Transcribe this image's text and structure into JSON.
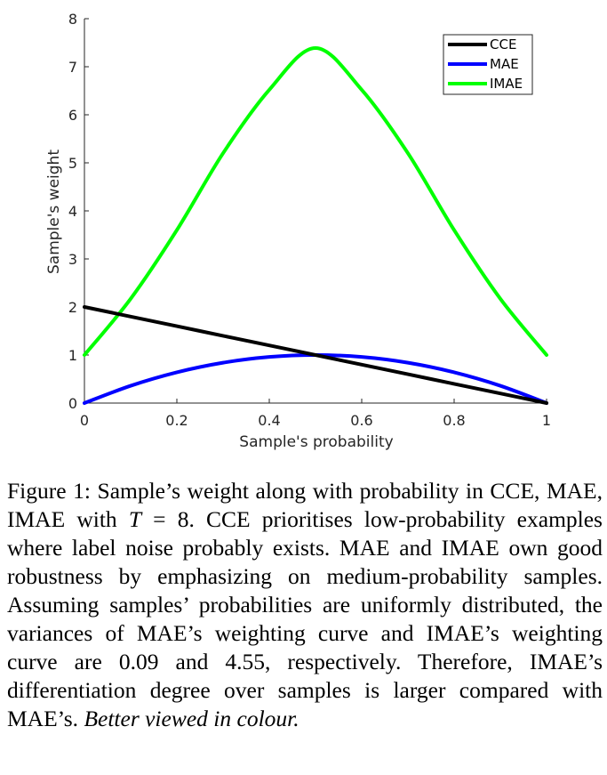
{
  "chart_data": {
    "type": "line",
    "xlabel": "Sample's probability",
    "ylabel": "Sample's weight",
    "xlim": [
      0,
      1
    ],
    "ylim": [
      0,
      8
    ],
    "xticks": [
      0,
      0.2,
      0.4,
      0.6,
      0.8,
      1
    ],
    "xtick_labels": [
      "0",
      "0.2",
      "0.4",
      "0.6",
      "0.8",
      "1"
    ],
    "yticks": [
      0,
      1,
      2,
      3,
      4,
      5,
      6,
      7,
      8
    ],
    "ytick_labels": [
      "0",
      "1",
      "2",
      "3",
      "4",
      "5",
      "6",
      "7",
      "8"
    ],
    "grid": false,
    "legend_position": "top-right",
    "series": [
      {
        "name": "CCE",
        "color": "#000000",
        "x": [
          0,
          0.1,
          0.2,
          0.3,
          0.4,
          0.5,
          0.6,
          0.7,
          0.8,
          0.9,
          1
        ],
        "y": [
          2.0,
          1.8,
          1.6,
          1.4,
          1.2,
          1.0,
          0.8,
          0.6,
          0.4,
          0.2,
          0.0
        ]
      },
      {
        "name": "MAE",
        "color": "#0000ff",
        "x": [
          0,
          0.1,
          0.2,
          0.3,
          0.4,
          0.5,
          0.6,
          0.7,
          0.8,
          0.9,
          1
        ],
        "y": [
          0.0,
          0.36,
          0.64,
          0.84,
          0.96,
          1.0,
          0.96,
          0.84,
          0.64,
          0.36,
          0.0
        ]
      },
      {
        "name": "IMAE",
        "color": "#00ff00",
        "x": [
          0,
          0.1,
          0.2,
          0.3,
          0.4,
          0.5,
          0.6,
          0.7,
          0.8,
          0.9,
          1
        ],
        "y": [
          1.0,
          2.17,
          3.6,
          5.2,
          6.52,
          7.39,
          6.52,
          5.2,
          3.6,
          2.17,
          1.0
        ]
      }
    ]
  },
  "caption": {
    "label": "Figure 1: ",
    "text_1": "Sample’s weight along with probability in CCE, MAE, IMAE with ",
    "math_var": "T",
    "math_rest": " = 8",
    "text_2": ". CCE prioritises low-probability examples where label noise probably exists. MAE and IMAE own good robustness by emphasizing on medium-probability samples. Assuming samples’ probabilities are uniformly distributed, the variances of MAE’s weighting curve and IMAE’s weighting curve are 0.09 and 4.55, respectively. Therefore, IMAE’s differentiation degree over samples is larger compared with MAE’s. ",
    "emphasis": "Better viewed in colour."
  }
}
